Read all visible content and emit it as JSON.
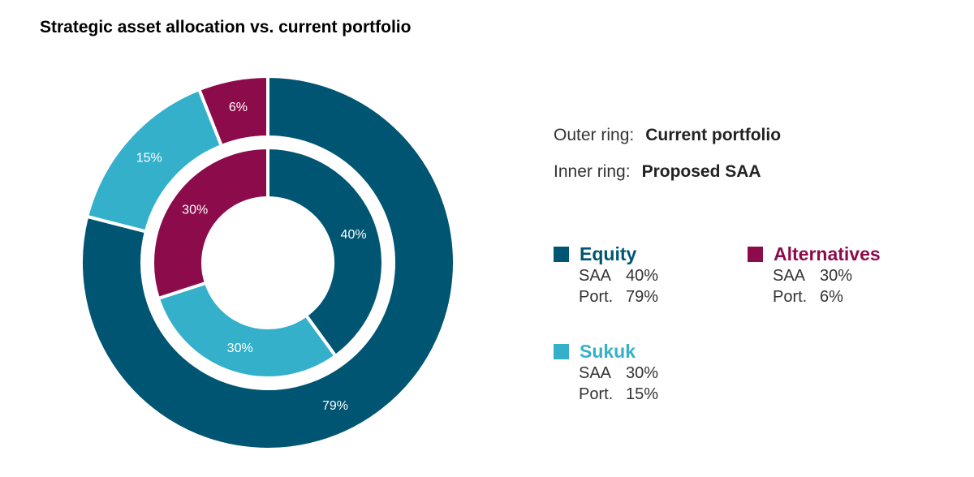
{
  "title": "Strategic asset allocation vs. current portfolio",
  "ring_info": {
    "outer": {
      "label": "Outer ring:",
      "value": "Current portfolio"
    },
    "inner": {
      "label": "Inner ring:",
      "value": "Proposed SAA"
    }
  },
  "colors": {
    "equity": "#005572",
    "sukuk": "#35b0cb",
    "alternatives": "#8c0c4b"
  },
  "legend": {
    "equity": {
      "name": "Equity",
      "saa_label": "SAA",
      "saa_value": "40%",
      "port_label": "Port.",
      "port_value": "79%"
    },
    "alternatives": {
      "name": "Alternatives",
      "saa_label": "SAA",
      "saa_value": "30%",
      "port_label": "Port.",
      "port_value": "6%"
    },
    "sukuk": {
      "name": "Sukuk",
      "saa_label": "SAA",
      "saa_value": "30%",
      "port_label": "Port.",
      "port_value": "15%"
    }
  },
  "chart_data": {
    "type": "pie",
    "variant": "nested-donut",
    "categories": [
      "Equity",
      "Sukuk",
      "Alternatives"
    ],
    "series": [
      {
        "name": "Current portfolio",
        "ring": "outer",
        "values": [
          79,
          15,
          6
        ],
        "labels": [
          "79%",
          "15%",
          "6%"
        ]
      },
      {
        "name": "Proposed SAA",
        "ring": "inner",
        "values": [
          40,
          30,
          30
        ],
        "labels": [
          "40%",
          "30%",
          "30%"
        ]
      }
    ],
    "title": "Strategic asset allocation vs. current portfolio",
    "legend_position": "right"
  }
}
